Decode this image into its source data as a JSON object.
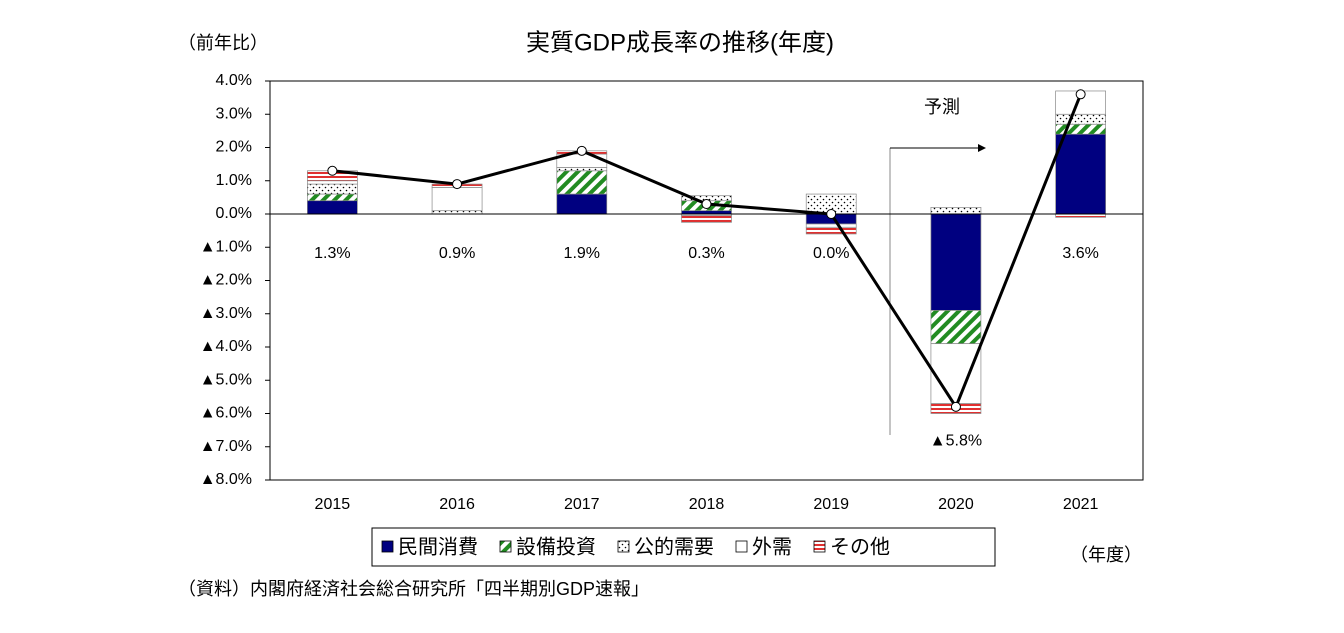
{
  "chart_data": {
    "type": "stacked-bar-line",
    "title": "実質GDP成長率の推移(年度)",
    "y_label": "（前年比）",
    "x_label": "（年度）",
    "source": "（資料）内閣府経済社会総合研究所「四半期別GDP速報」",
    "annotation": "予測",
    "categories": [
      "2015",
      "2016",
      "2017",
      "2018",
      "2019",
      "2020",
      "2021"
    ],
    "ylim": [
      -8,
      4
    ],
    "yticks": [
      {
        "value": 4,
        "label": "4.0%"
      },
      {
        "value": 3,
        "label": "3.0%"
      },
      {
        "value": 2,
        "label": "2.0%"
      },
      {
        "value": 1,
        "label": "1.0%"
      },
      {
        "value": 0,
        "label": "0.0%"
      },
      {
        "value": -1,
        "label": "▲1.0%"
      },
      {
        "value": -2,
        "label": "▲2.0%"
      },
      {
        "value": -3,
        "label": "▲3.0%"
      },
      {
        "value": -4,
        "label": "▲4.0%"
      },
      {
        "value": -5,
        "label": "▲5.0%"
      },
      {
        "value": -6,
        "label": "▲6.0%"
      },
      {
        "value": -7,
        "label": "▲7.0%"
      },
      {
        "value": -8,
        "label": "▲8.0%"
      }
    ],
    "grid": false,
    "series": [
      {
        "name": "民間消費",
        "color": "#000080",
        "pattern": "solid",
        "values": [
          0.4,
          0,
          0.6,
          0.1,
          -0.3,
          -2.9,
          2.4
        ]
      },
      {
        "name": "設備投資",
        "color": "#228b22",
        "pattern": "diagonal",
        "values": [
          0.2,
          0,
          0.7,
          0.3,
          0,
          -1.0,
          0.3
        ]
      },
      {
        "name": "公的需要",
        "color": "#000000",
        "pattern": "dots",
        "values": [
          0.3,
          0.1,
          0.1,
          0.15,
          0.6,
          0.2,
          0.3
        ]
      },
      {
        "name": "外需",
        "color": "#ffffff",
        "pattern": "none",
        "values": [
          0.1,
          0.7,
          0.4,
          -0.05,
          -0.1,
          -1.8,
          0.7
        ]
      },
      {
        "name": "その他",
        "color": "#e03030",
        "pattern": "horizontal",
        "values": [
          0.3,
          0.1,
          0.1,
          -0.2,
          -0.2,
          -0.3,
          -0.1
        ]
      }
    ],
    "line": {
      "name": "実質GDP",
      "color": "#000000",
      "values": [
        1.3,
        0.9,
        1.9,
        0.3,
        0.0,
        -5.8,
        3.6
      ],
      "value_labels": [
        "1.3%",
        "0.9%",
        "1.9%",
        "0.3%",
        "0.0%",
        "▲5.8%",
        "3.6%"
      ]
    }
  }
}
